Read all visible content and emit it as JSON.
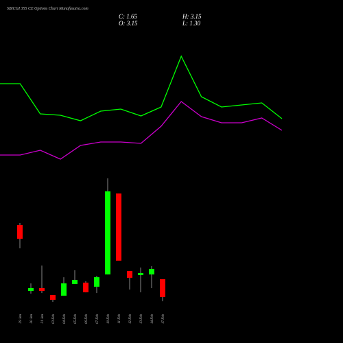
{
  "chart_data": [
    {
      "type": "line",
      "title": "SBICGI 355 CE Options Chart Munafasutra.com",
      "ylim": [
        0,
        100
      ],
      "series": [
        {
          "color": "#00ff00",
          "values": [
            69,
            69,
            47,
            46,
            42,
            49,
            50.5,
            45.5,
            52,
            89,
            59.5,
            52,
            53.5,
            55,
            43.5
          ]
        },
        {
          "color": "#cc00cc",
          "values": [
            17,
            17,
            20.5,
            14,
            24,
            26.5,
            26.5,
            25.5,
            38,
            56,
            45,
            40.5,
            40.5,
            44,
            35
          ]
        }
      ]
    },
    {
      "type": "candlestick",
      "header": [
        "C: 1.65",
        "H: 3.15",
        "O: 3.15",
        "L: 1.30"
      ],
      "categories": [
        "29 Jan",
        "30 Jan",
        "31 Jan",
        "03 Feb",
        "04 Feb",
        "05 Feb",
        "06 Feb",
        "07 Feb",
        "10 Feb",
        "11 Feb",
        "12 Feb",
        "13 Feb",
        "14 Feb",
        "17 Feb"
      ],
      "open": [
        7.71,
        2.17,
        2.4,
        1.82,
        1.76,
        2.75,
        2.86,
        2.52,
        3.55,
        10.36,
        3.84,
        3.5,
        3.55,
        3.15
      ],
      "high": [
        7.88,
        2.8,
        4.3,
        1.82,
        3.32,
        3.9,
        2.98,
        3.44,
        11.63,
        10.36,
        3.84,
        4.13,
        4.25,
        3.15
      ],
      "low": [
        5.75,
        1.94,
        1.99,
        1.25,
        1.76,
        2.75,
        2.05,
        1.99,
        3.55,
        4.71,
        2.28,
        2.05,
        2.4,
        1.3
      ],
      "close": [
        6.55,
        2.4,
        2.17,
        1.42,
        2.8,
        3.09,
        2.05,
        3.32,
        10.54,
        4.71,
        3.27,
        3.67,
        4.02,
        1.65
      ],
      "up_color": "#00ff00",
      "down_color": "#ff0000",
      "ylim": [
        0.67,
        12.21
      ]
    }
  ]
}
